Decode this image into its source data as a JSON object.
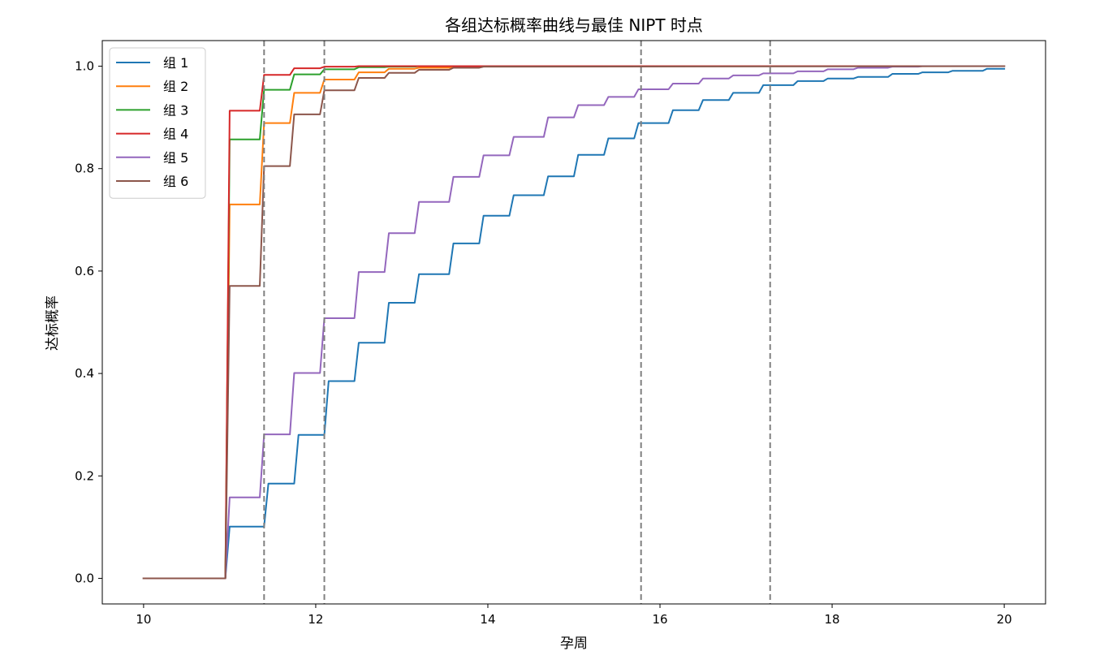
{
  "chart_data": {
    "type": "line",
    "title": "各组达标概率曲线与最佳 NIPT 时点",
    "xlabel": "孕周",
    "ylabel": "达标概率",
    "xlim": [
      9.52,
      20.48
    ],
    "ylim": [
      -0.05,
      1.05
    ],
    "xticks": [
      10,
      12,
      14,
      16,
      18,
      20
    ],
    "xtick_labels": [
      "10",
      "12",
      "14",
      "16",
      "18",
      "20"
    ],
    "yticks": [
      0.0,
      0.2,
      0.4,
      0.6,
      0.8,
      1.0
    ],
    "ytick_labels": [
      "0.0",
      "0.2",
      "0.4",
      "0.6",
      "0.8",
      "1.0"
    ],
    "grid": false,
    "legend_position": "upper-left",
    "vlines": {
      "x": [
        11.4,
        12.1,
        15.78,
        17.28
      ],
      "color": "#808080",
      "style": "dashed"
    },
    "series": [
      {
        "name": "组 1",
        "color": "#1f77b4",
        "x": [
          10,
          10.95,
          11.0,
          11.4,
          11.45,
          11.75,
          11.8,
          12.1,
          12.15,
          12.45,
          12.5,
          12.8,
          12.85,
          13.15,
          13.2,
          13.55,
          13.6,
          13.9,
          13.95,
          14.25,
          14.3,
          14.65,
          14.7,
          15.0,
          15.05,
          15.35,
          15.4,
          15.7,
          15.75,
          16.1,
          16.15,
          16.45,
          16.5,
          16.8,
          16.85,
          17.15,
          17.2,
          17.55,
          17.6,
          17.9,
          17.95,
          18.25,
          18.3,
          18.65,
          18.7,
          19.0,
          19.05,
          19.35,
          19.4,
          19.75,
          19.8,
          20.0
        ],
        "y": [
          0,
          0,
          0.101,
          0.101,
          0.185,
          0.185,
          0.28,
          0.28,
          0.385,
          0.385,
          0.46,
          0.46,
          0.538,
          0.538,
          0.594,
          0.594,
          0.654,
          0.654,
          0.708,
          0.708,
          0.748,
          0.748,
          0.785,
          0.785,
          0.827,
          0.827,
          0.859,
          0.859,
          0.889,
          0.889,
          0.914,
          0.914,
          0.934,
          0.934,
          0.948,
          0.948,
          0.963,
          0.963,
          0.971,
          0.971,
          0.976,
          0.976,
          0.979,
          0.979,
          0.985,
          0.985,
          0.988,
          0.988,
          0.991,
          0.991,
          0.995,
          0.995
        ]
      },
      {
        "name": "组 2",
        "color": "#ff7f0e",
        "x": [
          10,
          10.95,
          11.0,
          11.35,
          11.4,
          11.7,
          11.75,
          12.05,
          12.1,
          12.45,
          12.5,
          12.8,
          12.85,
          13.15,
          13.2,
          13.55,
          13.6,
          13.9,
          13.95,
          20.0
        ],
        "y": [
          0,
          0,
          0.73,
          0.73,
          0.889,
          0.889,
          0.948,
          0.948,
          0.974,
          0.974,
          0.988,
          0.988,
          0.995,
          0.995,
          0.997,
          0.997,
          0.999,
          0.999,
          1.0,
          1.0
        ]
      },
      {
        "name": "组 3",
        "color": "#2ca02c",
        "x": [
          10,
          10.95,
          11.0,
          11.35,
          11.4,
          11.7,
          11.75,
          12.05,
          12.1,
          12.45,
          12.5,
          12.8,
          12.85,
          13.15,
          13.2,
          20.0
        ],
        "y": [
          0,
          0,
          0.857,
          0.857,
          0.954,
          0.954,
          0.984,
          0.984,
          0.994,
          0.994,
          0.998,
          0.998,
          0.999,
          0.999,
          1.0,
          1.0
        ]
      },
      {
        "name": "组 4",
        "color": "#d62728",
        "x": [
          10,
          10.95,
          11.0,
          11.35,
          11.4,
          11.7,
          11.75,
          12.05,
          12.1,
          12.45,
          12.5,
          20.0
        ],
        "y": [
          0,
          0,
          0.913,
          0.913,
          0.983,
          0.983,
          0.996,
          0.996,
          0.999,
          0.999,
          1.0,
          1.0
        ]
      },
      {
        "name": "组 5",
        "color": "#9467bd",
        "x": [
          10,
          10.95,
          11.0,
          11.35,
          11.4,
          11.7,
          11.75,
          12.05,
          12.1,
          12.45,
          12.5,
          12.8,
          12.85,
          13.15,
          13.2,
          13.55,
          13.6,
          13.9,
          13.95,
          14.25,
          14.3,
          14.65,
          14.7,
          15.0,
          15.05,
          15.35,
          15.4,
          15.7,
          15.75,
          16.1,
          16.15,
          16.45,
          16.5,
          16.8,
          16.85,
          17.15,
          17.2,
          17.55,
          17.6,
          17.9,
          17.95,
          18.25,
          18.3,
          18.65,
          18.7,
          19.0,
          19.05,
          20.0
        ],
        "y": [
          0,
          0,
          0.158,
          0.158,
          0.281,
          0.281,
          0.401,
          0.401,
          0.508,
          0.508,
          0.598,
          0.598,
          0.674,
          0.674,
          0.735,
          0.735,
          0.784,
          0.784,
          0.826,
          0.826,
          0.862,
          0.862,
          0.9,
          0.9,
          0.924,
          0.924,
          0.94,
          0.94,
          0.955,
          0.955,
          0.966,
          0.966,
          0.976,
          0.976,
          0.982,
          0.982,
          0.986,
          0.986,
          0.99,
          0.99,
          0.994,
          0.994,
          0.997,
          0.997,
          0.999,
          0.999,
          1.0,
          1.0
        ]
      },
      {
        "name": "组 6",
        "color": "#8c564b",
        "x": [
          10,
          10.95,
          11.0,
          11.35,
          11.4,
          11.7,
          11.75,
          12.05,
          12.1,
          12.45,
          12.5,
          12.8,
          12.85,
          13.15,
          13.2,
          13.55,
          13.6,
          13.9,
          13.95,
          20.0
        ],
        "y": [
          0,
          0,
          0.571,
          0.571,
          0.805,
          0.805,
          0.906,
          0.906,
          0.953,
          0.953,
          0.977,
          0.977,
          0.987,
          0.987,
          0.993,
          0.993,
          0.997,
          0.997,
          0.999,
          1.0
        ]
      }
    ]
  }
}
